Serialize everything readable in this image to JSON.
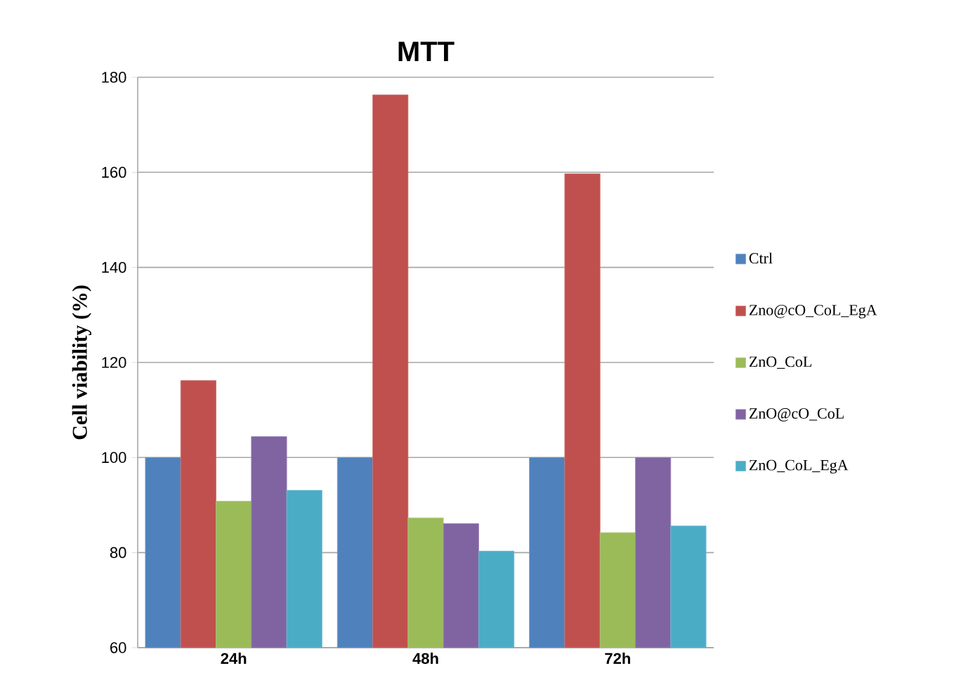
{
  "chart_data": {
    "type": "bar",
    "title": "MTT",
    "ylabel": "Cell viability (%)",
    "categories": [
      "24h",
      "48h",
      "72h"
    ],
    "series": [
      {
        "name": "Ctrl",
        "color": "#4f81bd",
        "values": [
          100,
          100,
          100
        ]
      },
      {
        "name": "Zno@cO_CoL_EgA",
        "color": "#c0504d",
        "values": [
          116.2,
          176.3,
          159.7
        ]
      },
      {
        "name": "ZnO_CoL",
        "color": "#9bbb59",
        "values": [
          90.8,
          87.3,
          84.2
        ]
      },
      {
        "name": "ZnO@cO_CoL",
        "color": "#8064a2",
        "values": [
          104.4,
          86.1,
          100
        ]
      },
      {
        "name": "ZnO_CoL_EgA",
        "color": "#4bacc6",
        "values": [
          93.1,
          80.3,
          85.6
        ]
      }
    ],
    "ylim": [
      60,
      180
    ],
    "yticks": [
      60,
      80,
      100,
      120,
      140,
      160,
      180
    ],
    "grid": "y",
    "legend": "right"
  }
}
